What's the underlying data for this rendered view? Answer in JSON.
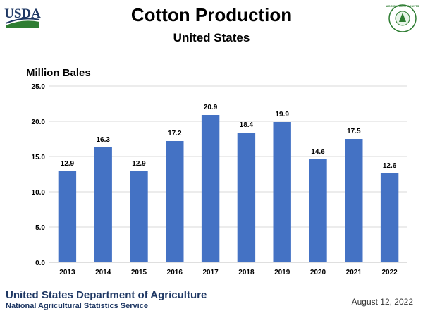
{
  "header": {
    "title": "Cotton Production",
    "subtitle": "United States",
    "usda_logo_text": "USDA",
    "nass_seal_text": "AGRICULTURE COUNTS"
  },
  "chart_data": {
    "type": "bar",
    "title": "Cotton Production",
    "subtitle": "United States",
    "ylabel": "Million Bales",
    "xlabel": "",
    "categories": [
      "2013",
      "2014",
      "2015",
      "2016",
      "2017",
      "2018",
      "2019",
      "2020",
      "2021",
      "2022"
    ],
    "values": [
      12.9,
      16.3,
      12.9,
      17.2,
      20.9,
      18.4,
      19.9,
      14.6,
      17.5,
      12.6
    ],
    "value_labels": [
      "12.9",
      "16.3",
      "12.9",
      "17.2",
      "20.9",
      "18.4",
      "19.9",
      "14.6",
      "17.5",
      "12.6"
    ],
    "ylim": [
      0,
      25
    ],
    "yticks": [
      "0.0",
      "5.0",
      "10.0",
      "15.0",
      "20.0",
      "25.0"
    ],
    "grid": true,
    "bar_color": "#4472c4"
  },
  "footer": {
    "organization": "United States Department of Agriculture",
    "service": "National Agricultural Statistics Service",
    "date": "August 12, 2022"
  }
}
